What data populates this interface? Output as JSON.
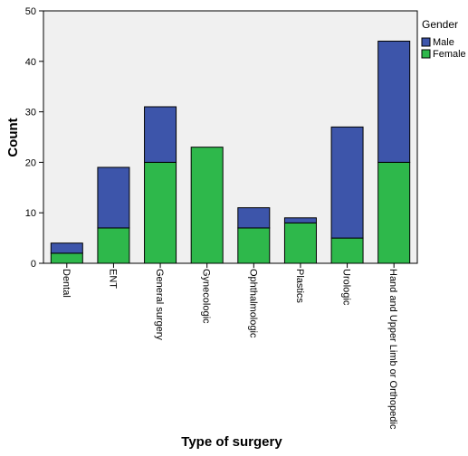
{
  "chart_data": {
    "type": "bar",
    "stacked": true,
    "categories": [
      "Dental",
      "ENT",
      "General surgery",
      "Gynecologic",
      "Ophthalmologic",
      "Plastics",
      "Urologic",
      "Hand and Upper Limb or Orthopedic"
    ],
    "series": [
      {
        "name": "Female",
        "color": "#2eb84b",
        "values": [
          2,
          7,
          20,
          23,
          7,
          8,
          5,
          20
        ]
      },
      {
        "name": "Male",
        "color": "#3d55aa",
        "values": [
          2,
          12,
          11,
          0,
          4,
          1,
          22,
          24
        ]
      }
    ],
    "xlabel": "Type of surgery",
    "ylabel": "Count",
    "ylim": [
      0,
      50
    ],
    "yticks": [
      0,
      10,
      20,
      30,
      40,
      50
    ],
    "legend": {
      "title": "Gender",
      "placement": "right",
      "order": [
        "Male",
        "Female"
      ]
    },
    "plot_background": "#f0f0f0",
    "grid": false
  }
}
